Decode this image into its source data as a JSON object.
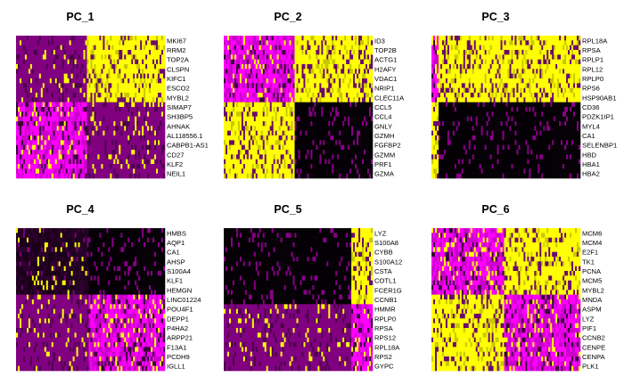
{
  "colors": {
    "low": "#ff00ff",
    "mid": "#000000",
    "high": "#ffff00",
    "background": "#ffffff"
  },
  "chart_data": [
    {
      "type": "heatmap",
      "title": "PC_1",
      "genes": [
        "MKI67",
        "RRM2",
        "TOP2A",
        "CLSPN",
        "KIFC1",
        "ESCO2",
        "MYBL2",
        "SIMAP7",
        "SH3BP5",
        "AHNAK",
        "AL118556.1",
        "CABPB1-AS1",
        "CD27",
        "KLF2",
        "NEIL1"
      ]
    },
    {
      "type": "heatmap",
      "title": "PC_2",
      "genes": [
        "ID3",
        "TOP2B",
        "ACTG1",
        "H2AFY",
        "VDAC1",
        "NRIP1",
        "CLEC11A",
        "CCL5",
        "CCL4",
        "GNLY",
        "GZMH",
        "FGFBP2",
        "GZMM",
        "PRF1",
        "GZMA"
      ]
    },
    {
      "type": "heatmap",
      "title": "PC_3",
      "genes": [
        "RPL18A",
        "RPSA",
        "RPLP1",
        "RPL12",
        "RPLP0",
        "RPS6",
        "HSP90AB1",
        "CD36",
        "PDZK1IP1",
        "MYL4",
        "CA1",
        "SELENBP1",
        "HBD",
        "HBA1",
        "HBA2"
      ]
    },
    {
      "type": "heatmap",
      "title": "PC_4",
      "genes": [
        "HMBS",
        "AQP1",
        "CA1",
        "AHSP",
        "S100A4",
        "KLF1",
        "HEMGN",
        "LINC01224",
        "POU4F1",
        "DEPP1",
        "P4HA2",
        "ARPP21",
        "F13A1",
        "PCDH9",
        "IGLL1"
      ]
    },
    {
      "type": "heatmap",
      "title": "PC_5",
      "genes": [
        "LYZ",
        "S100A8",
        "CYBB",
        "S100A12",
        "CSTA",
        "COTL1",
        "FCER1G",
        "CCNB1",
        "HMMR",
        "RPLP0",
        "RPSA",
        "RPS12",
        "RPL18A",
        "RPS2",
        "GYPC"
      ]
    },
    {
      "type": "heatmap",
      "title": "PC_6",
      "genes": [
        "MCM6",
        "MCM4",
        "E2F1",
        "TK1",
        "PCNA",
        "MCM5",
        "MYBL2",
        "MNDA",
        "ASPM",
        "LYZ",
        "PIF1",
        "CCNB2",
        "CENPE",
        "CENPA",
        "PLK1"
      ]
    }
  ]
}
